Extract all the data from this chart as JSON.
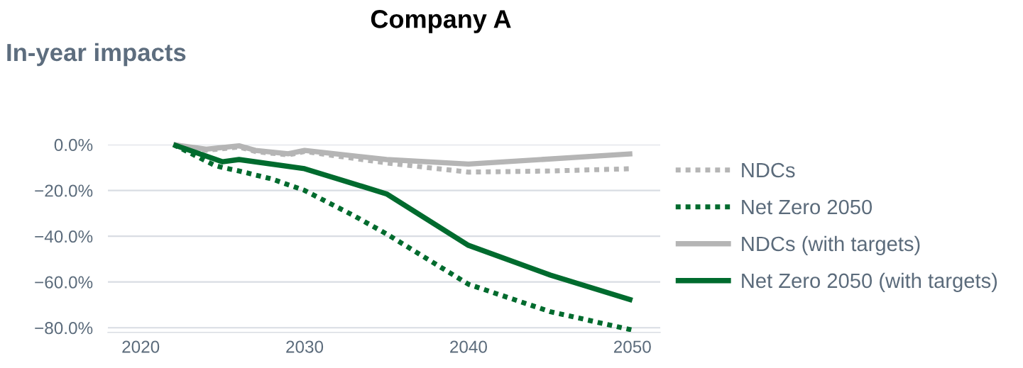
{
  "chart_data": {
    "type": "line",
    "title": "Company A",
    "subtitle": "In-year impacts",
    "xlim": [
      2018,
      2051.7
    ],
    "xticks": [
      2020,
      2030,
      2040,
      2050
    ],
    "ylim": [
      -82,
      0
    ],
    "yticks": [
      {
        "value": 0,
        "label": "0.0%"
      },
      {
        "value": -20,
        "label": "−20.0%"
      },
      {
        "value": -40,
        "label": "−40.0%"
      },
      {
        "value": -60,
        "label": "−60.0%"
      },
      {
        "value": -80,
        "label": "−80.0%"
      }
    ],
    "grid": "y",
    "legend": "right",
    "series": [
      {
        "name": "NDCs",
        "color": "#b5b5b5",
        "line_style": "dotted",
        "x": [
          2022,
          2024,
          2026,
          2027,
          2029,
          2030,
          2035,
          2040,
          2045,
          2050
        ],
        "values": [
          0,
          -2.5,
          -1,
          -3,
          -4.5,
          -3,
          -8,
          -12,
          -11.5,
          -10.5
        ]
      },
      {
        "name": "Net Zero 2050",
        "color": "#006b2e",
        "line_style": "dotted",
        "x": [
          2022,
          2024.5,
          2025,
          2026,
          2028,
          2030,
          2033,
          2035,
          2040,
          2045,
          2050
        ],
        "values": [
          0,
          -9,
          -10,
          -11.5,
          -15,
          -20,
          -31,
          -39,
          -61,
          -73,
          -81
        ]
      },
      {
        "name": "NDCs (with targets)",
        "color": "#b5b5b5",
        "line_style": "solid",
        "x": [
          2022,
          2024,
          2026,
          2027,
          2029,
          2030,
          2035,
          2040,
          2050
        ],
        "values": [
          0,
          -2,
          -0.5,
          -2.5,
          -4,
          -2.5,
          -6.5,
          -8.5,
          -4
        ]
      },
      {
        "name": "Net Zero 2050 (with targets)",
        "color": "#006b2e",
        "line_style": "solid",
        "x": [
          2022,
          2025,
          2026,
          2030,
          2035,
          2040,
          2045,
          2050
        ],
        "values": [
          0,
          -7.5,
          -6.5,
          -10.5,
          -21.5,
          -44,
          -57,
          -68
        ]
      }
    ]
  }
}
